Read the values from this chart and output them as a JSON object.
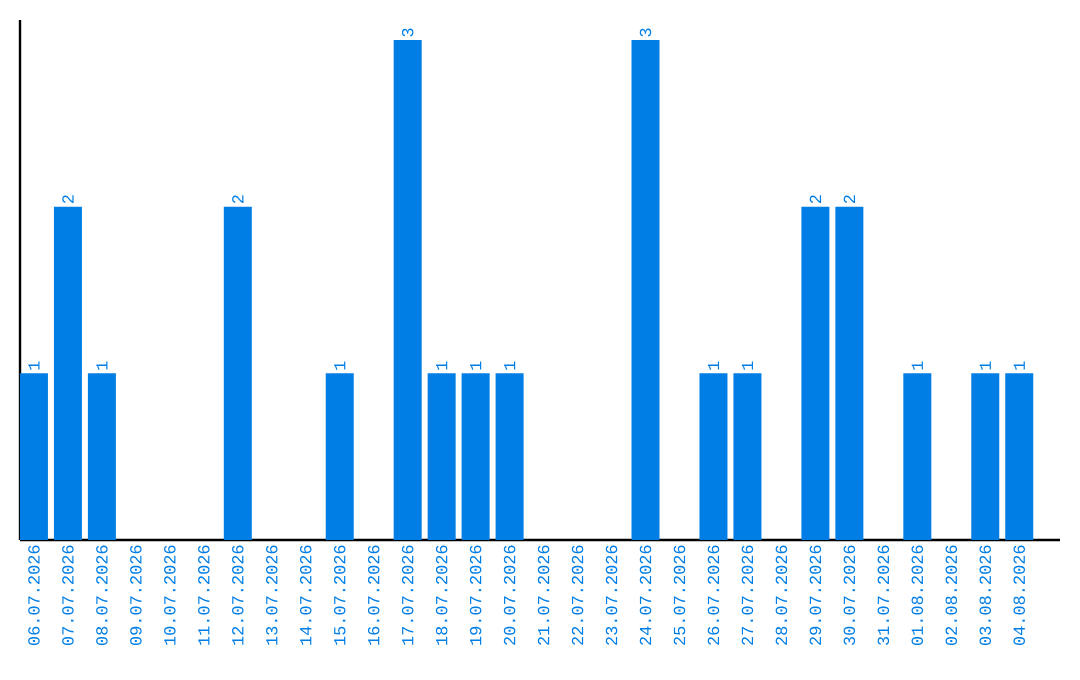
{
  "chart_data": {
    "type": "bar",
    "categories": [
      "06.07.2026",
      "07.07.2026",
      "08.07.2026",
      "09.07.2026",
      "10.07.2026",
      "11.07.2026",
      "12.07.2026",
      "13.07.2026",
      "14.07.2026",
      "15.07.2026",
      "16.07.2026",
      "17.07.2026",
      "18.07.2026",
      "19.07.2026",
      "20.07.2026",
      "21.07.2026",
      "22.07.2026",
      "23.07.2026",
      "24.07.2026",
      "25.07.2026",
      "26.07.2026",
      "27.07.2026",
      "28.07.2026",
      "29.07.2026",
      "30.07.2026",
      "31.07.2026",
      "01.08.2026",
      "02.08.2026",
      "03.08.2026",
      "04.08.2026"
    ],
    "values": [
      1,
      2,
      1,
      0,
      0,
      0,
      2,
      0,
      0,
      1,
      0,
      3,
      1,
      1,
      1,
      0,
      0,
      0,
      3,
      0,
      1,
      1,
      0,
      2,
      2,
      0,
      1,
      0,
      1,
      1
    ],
    "value_labels": [
      "1",
      "2",
      "1",
      null,
      null,
      null,
      "2",
      null,
      null,
      "1",
      null,
      "3",
      "1",
      "1",
      "1",
      null,
      null,
      null,
      "3",
      null,
      "1",
      "1",
      null,
      "2",
      "2",
      null,
      "1",
      null,
      "1",
      "1"
    ],
    "color": "#007ee5",
    "ylim": [
      0,
      3.12
    ],
    "tick_labels": "x"
  }
}
